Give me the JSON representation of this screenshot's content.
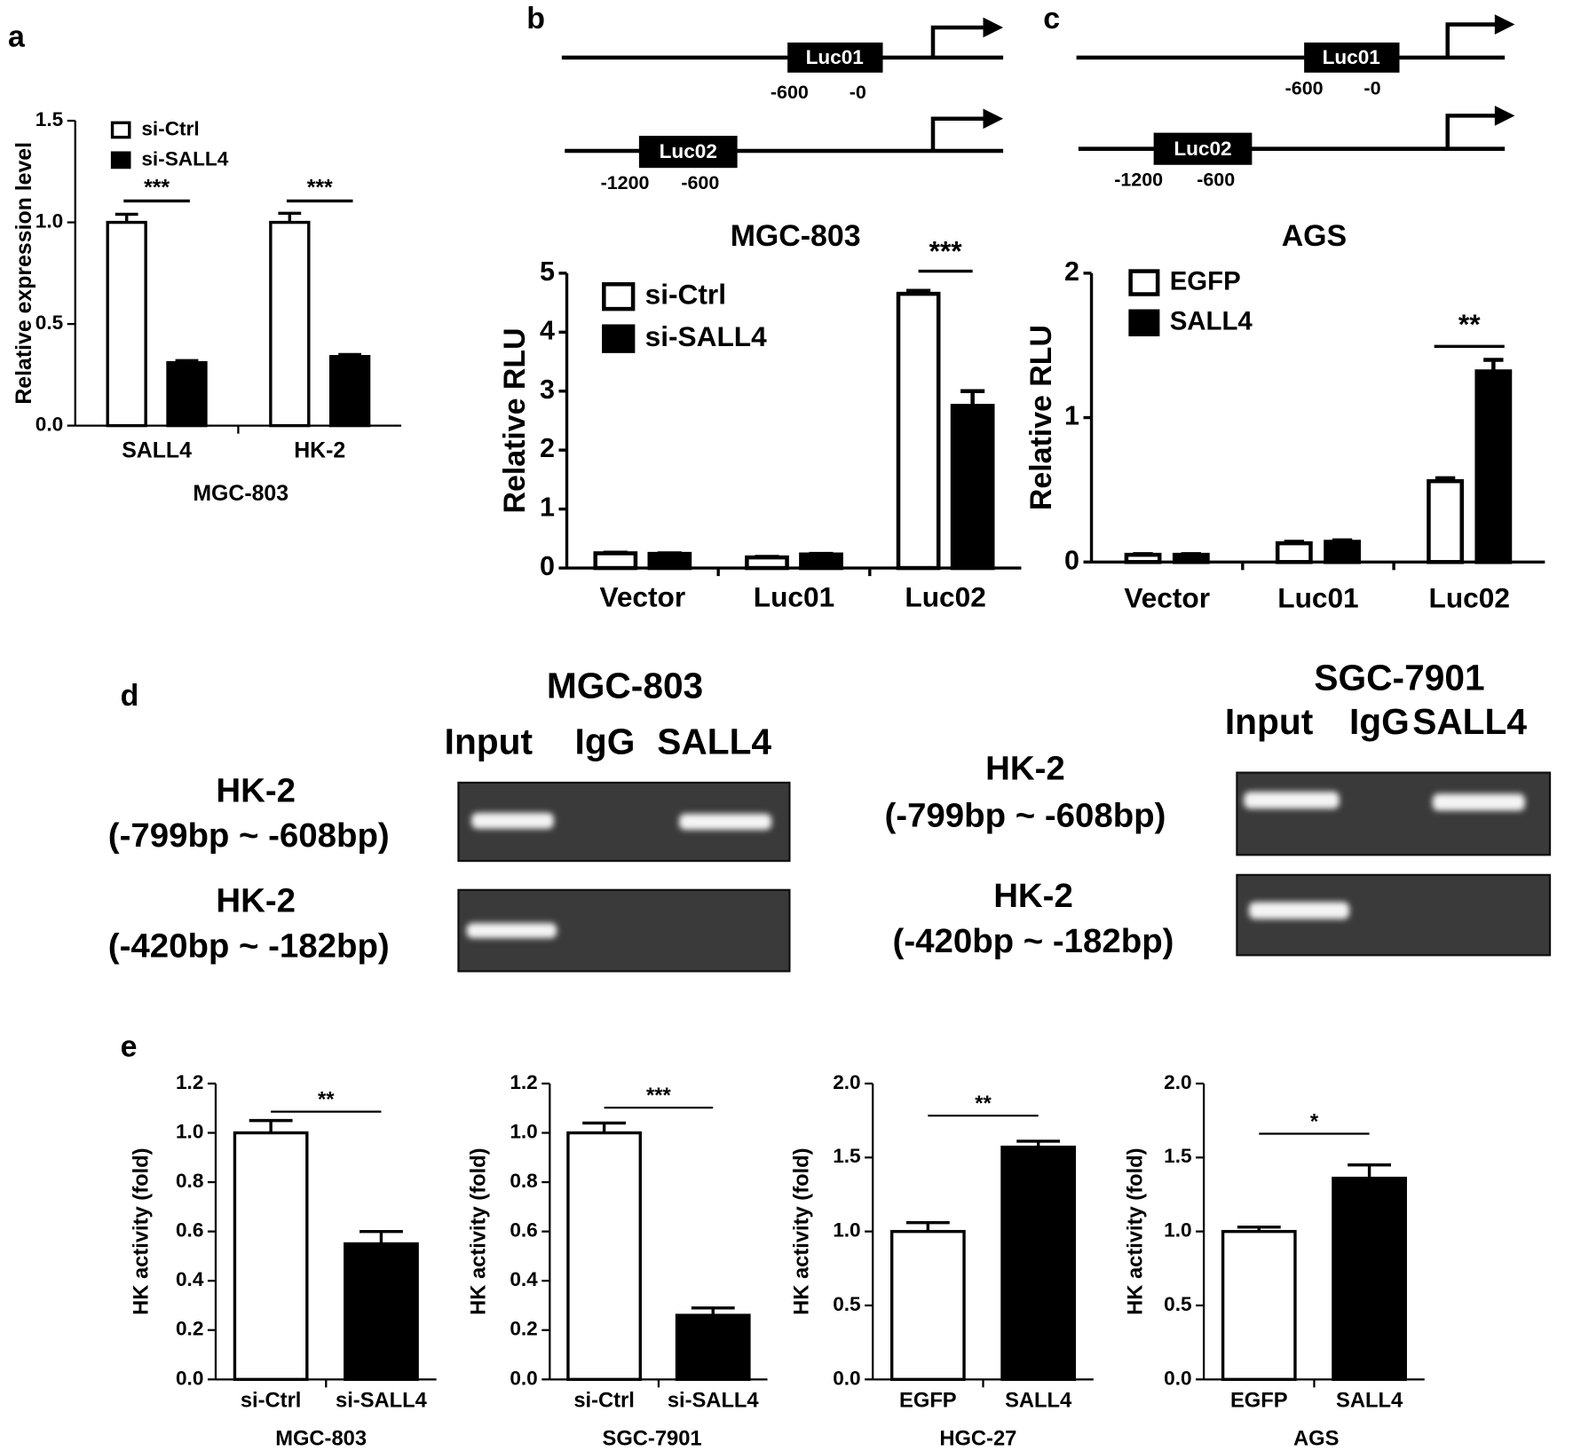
{
  "panel_labels": [
    "a",
    "b",
    "c",
    "d",
    "e"
  ],
  "diagrams": [
    {
      "constructs": [
        {
          "label": "Luc01",
          "positions": [
            "-600",
            "-0"
          ]
        },
        {
          "label": "Luc02",
          "positions": [
            "-1200",
            "-600"
          ]
        }
      ]
    },
    {
      "constructs": [
        {
          "label": "Luc01",
          "positions": [
            "-600",
            "-0"
          ]
        },
        {
          "label": "Luc02",
          "positions": [
            "-1200",
            "-600"
          ]
        }
      ]
    }
  ],
  "gels": [
    {
      "title": "MGC-803",
      "lanes": [
        "Input",
        "IgG",
        "SALL4"
      ],
      "rows": [
        [
          "HK-2",
          "(-799bp ~ -608bp)"
        ],
        [
          "HK-2",
          "(-420bp ~ -182bp)"
        ]
      ]
    },
    {
      "title": "SGC-7901",
      "lanes": [
        "Input",
        "IgG",
        "SALL4"
      ],
      "rows": [
        [
          "HK-2",
          "(-799bp ~ -608bp)"
        ],
        [
          "HK-2",
          "(-420bp ~ -182bp)"
        ]
      ]
    }
  ],
  "chart_data": [
    {
      "type": "bar",
      "categories": [
        "SALL4",
        "HK-2"
      ],
      "series": [
        {
          "name": "si-Ctrl",
          "color": "#ffffff",
          "values": [
            1.0,
            1.0
          ],
          "errors": [
            0.04,
            0.045
          ]
        },
        {
          "name": "si-SALL4",
          "color": "#000000",
          "values": [
            0.31,
            0.34
          ],
          "errors": [
            0.01,
            0.01
          ]
        }
      ],
      "ylim": [
        0,
        1.5
      ],
      "yticks": [
        {
          "value": 0,
          "label": "0.0"
        },
        0.5,
        {
          "value": 1,
          "label": "1.0"
        },
        1.5
      ],
      "ylabel": "Relative expression level",
      "xlabel": "MGC-803",
      "annotations": [
        "***",
        "***"
      ]
    },
    {
      "type": "bar",
      "title": "MGC-803",
      "categories": [
        "Vector",
        "Luc01",
        "Luc02"
      ],
      "series": [
        {
          "name": "si-Ctrl",
          "color": "#ffffff",
          "values": [
            0.25,
            0.18,
            4.65
          ],
          "errors": [
            0.01,
            0.01,
            0.05
          ]
        },
        {
          "name": "si-SALL4",
          "color": "#000000",
          "values": [
            0.24,
            0.23,
            2.75
          ],
          "errors": [
            0.01,
            0.01,
            0.25
          ]
        }
      ],
      "ylim": [
        0,
        5
      ],
      "yticks": [
        0,
        1,
        2,
        3,
        4,
        5
      ],
      "ylabel": "Relative RLU",
      "annotations": [
        null,
        null,
        "***"
      ]
    },
    {
      "type": "bar",
      "title": "AGS",
      "categories": [
        "Vector",
        "Luc01",
        "Luc02"
      ],
      "series": [
        {
          "name": "EGFP",
          "color": "#ffffff",
          "values": [
            0.05,
            0.13,
            0.56
          ],
          "errors": [
            0.005,
            0.01,
            0.02
          ]
        },
        {
          "name": "SALL4",
          "color": "#000000",
          "values": [
            0.05,
            0.14,
            1.32
          ],
          "errors": [
            0.005,
            0.01,
            0.08
          ]
        }
      ],
      "ylim": [
        0,
        2
      ],
      "yticks": [
        0,
        1,
        2
      ],
      "ylabel": "Relative RLU",
      "annotations": [
        null,
        null,
        "**"
      ]
    },
    {
      "type": "bar",
      "categories": [
        "si-Ctrl",
        "si-SALL4"
      ],
      "values": [
        1.0,
        0.55
      ],
      "errors": [
        0.05,
        0.05
      ],
      "colors": [
        "#ffffff",
        "#000000"
      ],
      "ylim": [
        0,
        1.2
      ],
      "yticks": [
        {
          "value": 0,
          "label": "0.0"
        },
        0.2,
        0.4,
        0.6,
        0.8,
        {
          "value": 1,
          "label": "1.0"
        },
        1.2
      ],
      "ylabel": "HK activity (fold)",
      "xlabel": "MGC-803",
      "annotation": "**"
    },
    {
      "type": "bar",
      "categories": [
        "si-Ctrl",
        "si-SALL4"
      ],
      "values": [
        1.0,
        0.26
      ],
      "errors": [
        0.04,
        0.03
      ],
      "colors": [
        "#ffffff",
        "#000000"
      ],
      "ylim": [
        0,
        1.2
      ],
      "yticks": [
        {
          "value": 0,
          "label": "0.0"
        },
        0.2,
        0.4,
        0.6,
        0.8,
        {
          "value": 1,
          "label": "1.0"
        },
        1.2
      ],
      "ylabel": "HK activity (fold)",
      "xlabel": "SGC-7901",
      "annotation": "***"
    },
    {
      "type": "bar",
      "categories": [
        "EGFP",
        "SALL4"
      ],
      "values": [
        1.0,
        1.57
      ],
      "errors": [
        0.06,
        0.04
      ],
      "colors": [
        "#ffffff",
        "#000000"
      ],
      "ylim": [
        0,
        2
      ],
      "yticks": [
        {
          "value": 0,
          "label": "0.0"
        },
        0.5,
        {
          "value": 1,
          "label": "1.0"
        },
        1.5,
        {
          "value": 2,
          "label": "2.0"
        }
      ],
      "ylabel": "HK activity (fold)",
      "xlabel": "HGC-27",
      "annotation": "**"
    },
    {
      "type": "bar",
      "categories": [
        "EGFP",
        "SALL4"
      ],
      "values": [
        1.0,
        1.36
      ],
      "errors": [
        0.03,
        0.09
      ],
      "colors": [
        "#ffffff",
        "#000000"
      ],
      "ylim": [
        0,
        2
      ],
      "yticks": [
        {
          "value": 0,
          "label": "0.0"
        },
        0.5,
        {
          "value": 1,
          "label": "1.0"
        },
        1.5,
        {
          "value": 2,
          "label": "2.0"
        }
      ],
      "ylabel": "HK activity (fold)",
      "xlabel": "AGS",
      "annotation": "*"
    }
  ]
}
